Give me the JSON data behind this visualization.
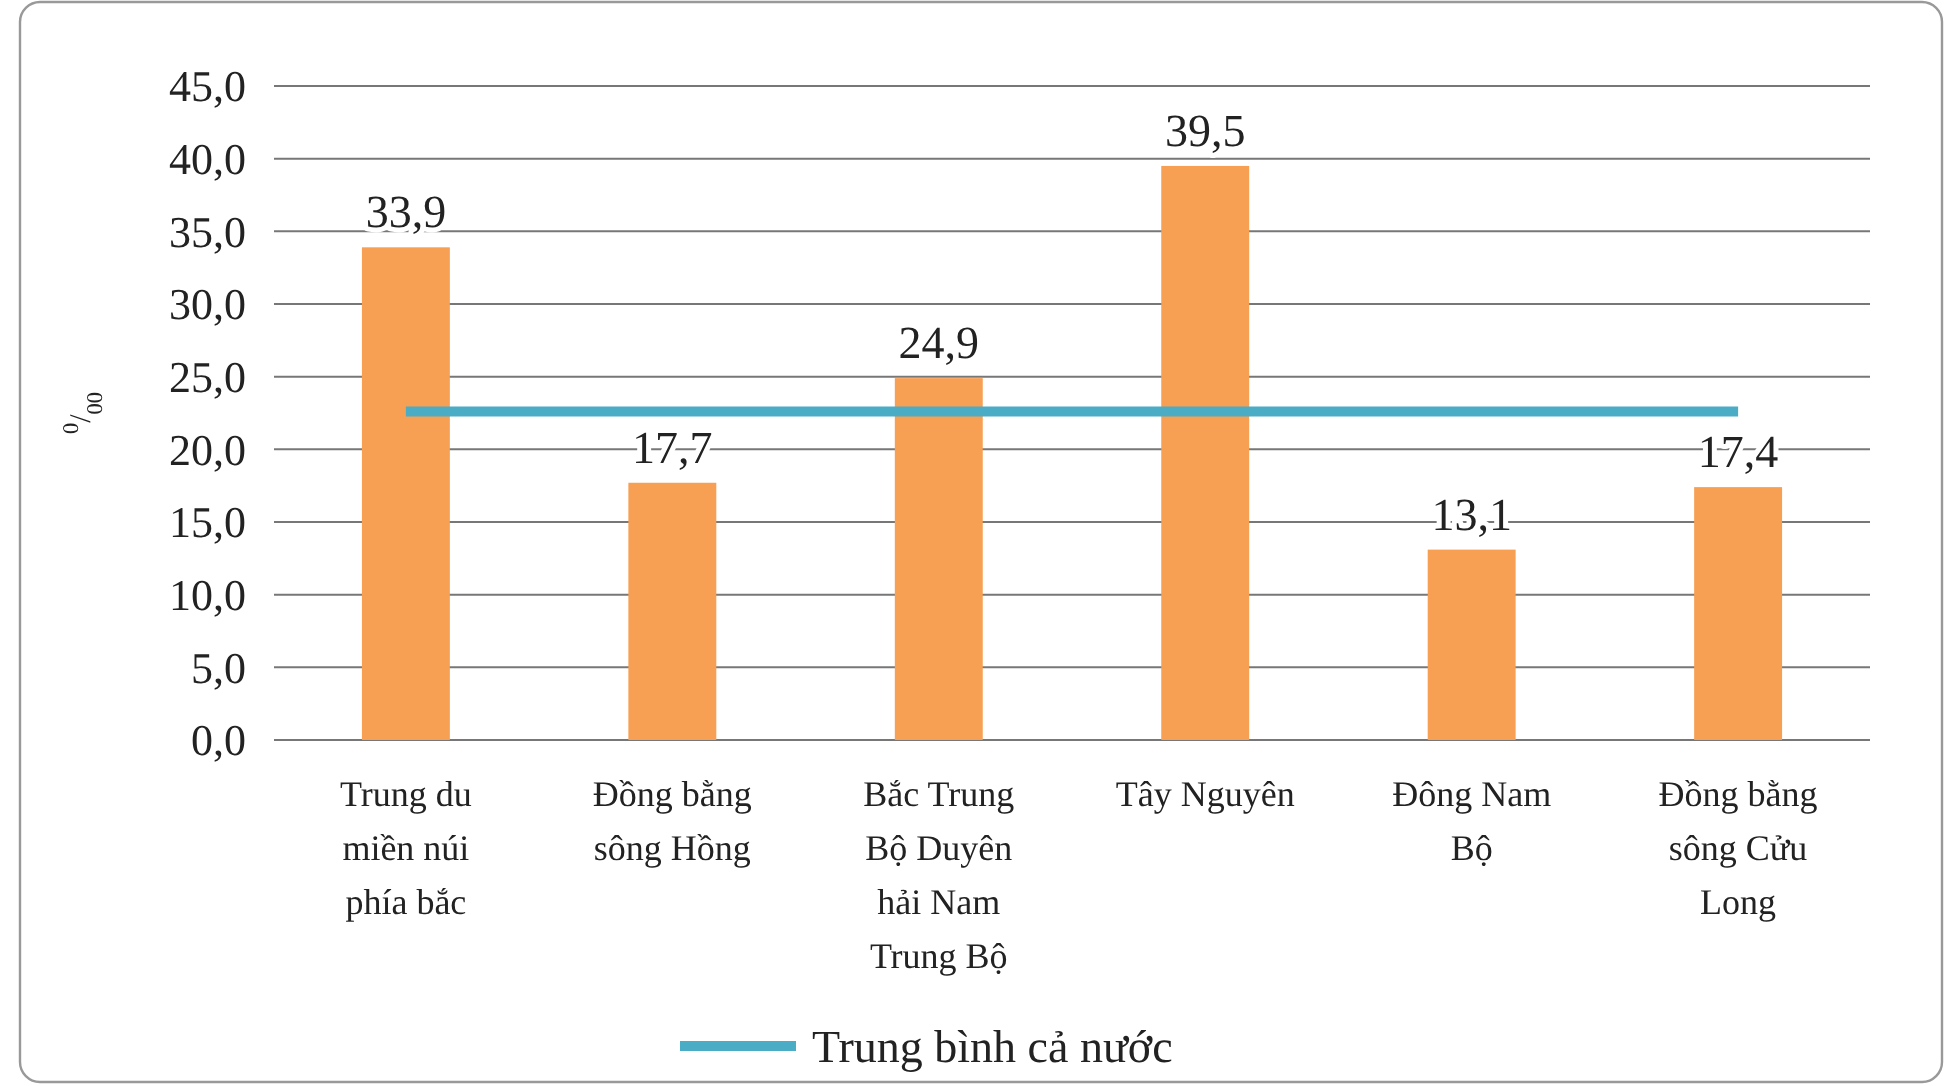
{
  "chart_data": {
    "type": "bar",
    "ylabel": "$^{0}$/$_{00}$",
    "categories": [
      "Trung du miền núi phía bắc",
      "Đồng bằng sông Hồng",
      "Bắc Trung Bộ Duyên hải Nam Trung Bộ",
      "Tây Nguyên",
      "Đông Nam Bộ",
      "Đồng bằng sông Cửu Long"
    ],
    "series": [
      {
        "color": "#f79f52",
        "values": [
          33.9,
          17.7,
          24.9,
          39.5,
          13.1,
          17.4
        ],
        "value_labels": [
          "33,9",
          "17,7",
          "24,9",
          "39,5",
          "13,1",
          "17,4"
        ]
      },
      {
        "type": "line",
        "name": "Trung bình cả nước",
        "color": "#4bacc6",
        "values": [
          22.6,
          22.6,
          22.6,
          22.6,
          22.6,
          22.6
        ]
      }
    ],
    "ylim": [
      0,
      45
    ],
    "yticks": [
      {
        "value": 0,
        "label": "0,0"
      },
      {
        "value": 5,
        "label": "5,0"
      },
      {
        "value": 10,
        "label": "10,0"
      },
      {
        "value": 15,
        "label": "15,0"
      },
      {
        "value": 20,
        "label": "20,0"
      },
      {
        "value": 25,
        "label": "25,0"
      },
      {
        "value": 30,
        "label": "30,0"
      },
      {
        "value": 35,
        "label": "35,0"
      },
      {
        "value": 40,
        "label": "40,0"
      },
      {
        "value": 45,
        "label": "45,0"
      }
    ],
    "grid": "y",
    "legend": "bottom",
    "marker": "none",
    "line_style": "solid"
  }
}
